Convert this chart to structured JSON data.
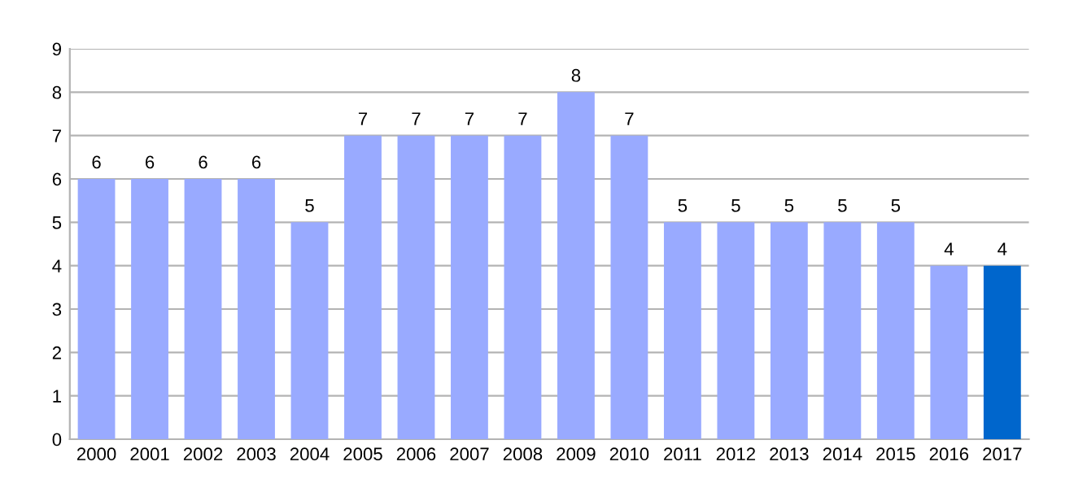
{
  "chart_data": {
    "type": "bar",
    "categories": [
      "2000",
      "2001",
      "2002",
      "2003",
      "2004",
      "2005",
      "2006",
      "2007",
      "2008",
      "2009",
      "2010",
      "2011",
      "2012",
      "2013",
      "2014",
      "2015",
      "2016",
      "2017"
    ],
    "values": [
      6,
      6,
      6,
      6,
      5,
      7,
      7,
      7,
      7,
      8,
      7,
      5,
      5,
      5,
      5,
      5,
      4,
      4
    ],
    "colors": [
      "#99aaff",
      "#99aaff",
      "#99aaff",
      "#99aaff",
      "#99aaff",
      "#99aaff",
      "#99aaff",
      "#99aaff",
      "#99aaff",
      "#99aaff",
      "#99aaff",
      "#99aaff",
      "#99aaff",
      "#99aaff",
      "#99aaff",
      "#99aaff",
      "#99aaff",
      "#0066cc"
    ],
    "ylim": [
      0,
      9
    ],
    "yticks": [
      0,
      1,
      2,
      3,
      4,
      5,
      6,
      7,
      8,
      9
    ],
    "grid": "y",
    "data_labels": true
  }
}
